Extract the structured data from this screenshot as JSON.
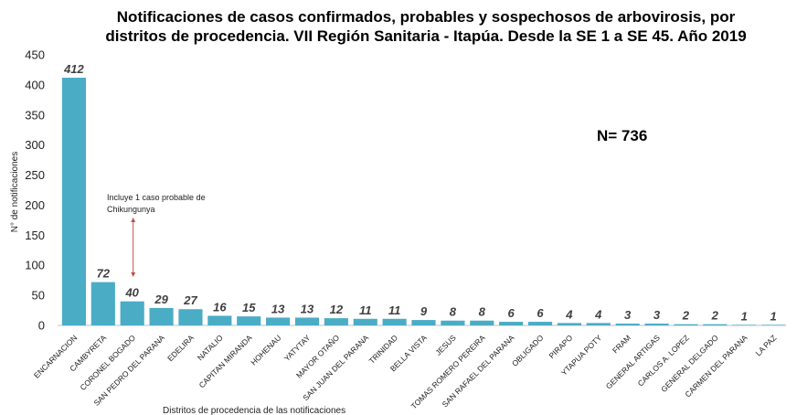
{
  "chart_data": {
    "type": "bar",
    "title_line1": "Notificaciones de casos confirmados, probables y sospechosos de arbovirosis, por",
    "title_line2": "distritos de procedencia.  VII Región Sanitaria - Itapúa. Desde la SE 1 a SE 45. Año 2019",
    "xlabel": "Distritos de procedencia de las notificaciones",
    "ylabel": "N° de notificaciones",
    "ylim": [
      0,
      450
    ],
    "yticks": [
      0,
      50,
      100,
      150,
      200,
      250,
      300,
      350,
      400,
      450
    ],
    "categories": [
      "ENCARNACION",
      "CAMBYRETA",
      "CORONEL BOGADO",
      "SAN PEDRO DEL PARANA",
      "EDELIRA",
      "NATALIO",
      "CAPITAN MIRANDA",
      "HOHENAU",
      "YATYTAY",
      "MAYOR OTAÑO",
      "SAN JUAN DEL PARANA",
      "TRINIDAD",
      "BELLA VISTA",
      "JESUS",
      "TOMAS ROMERO PEREIRA",
      "SAN RAFAEL DEL PARANA",
      "OBLIGADO",
      "PIRAPO",
      "YTAPUA POTY",
      "FRAM",
      "GENERAL ARTIGAS",
      "CARLOS A. LOPEZ",
      "GENERAL DELGADO",
      "CARMEN DEL PARANA",
      "LA PAZ"
    ],
    "values": [
      412,
      72,
      40,
      29,
      27,
      16,
      15,
      13,
      13,
      12,
      11,
      11,
      9,
      8,
      8,
      6,
      6,
      4,
      4,
      3,
      3,
      2,
      2,
      1,
      1
    ],
    "bar_color": "#4bacc6",
    "grid": false,
    "legend": "none",
    "annotations": {
      "total": "N= 736",
      "note_line1": "Incluye 1 caso probable de",
      "note_line2": "Chikungunya",
      "note_target": "CORONEL BOGADO",
      "arrow_color": "#c0504d"
    }
  }
}
